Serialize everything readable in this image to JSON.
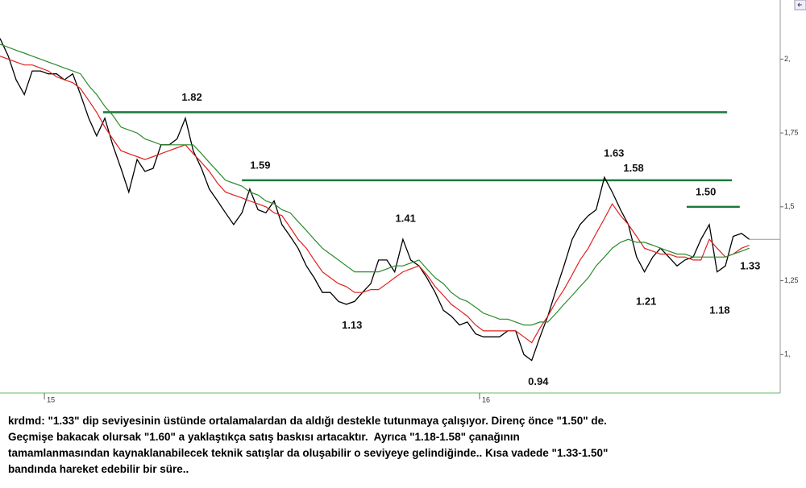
{
  "chart_data": {
    "type": "line",
    "xlim": [
      14.898,
      16.691
    ],
    "ylim": [
      0.87,
      2.2
    ],
    "xticks": [
      15,
      16
    ],
    "yticks": [
      {
        "value": 1,
        "label": "1,"
      },
      {
        "value": 1.25,
        "label": "1,25"
      },
      {
        "value": 1.5,
        "label": "1,5"
      },
      {
        "value": 1.75,
        "label": "1,75"
      },
      {
        "value": 2,
        "label": "2,"
      }
    ],
    "x": [
      14.898,
      14.917,
      14.935,
      14.954,
      14.972,
      14.991,
      15.009,
      15.028,
      15.046,
      15.065,
      15.083,
      15.102,
      15.12,
      15.139,
      15.157,
      15.176,
      15.194,
      15.213,
      15.231,
      15.25,
      15.268,
      15.287,
      15.305,
      15.324,
      15.342,
      15.361,
      15.379,
      15.398,
      15.416,
      15.435,
      15.454,
      15.472,
      15.491,
      15.509,
      15.528,
      15.546,
      15.565,
      15.583,
      15.602,
      15.62,
      15.639,
      15.657,
      15.676,
      15.694,
      15.713,
      15.731,
      15.75,
      15.768,
      15.787,
      15.805,
      15.824,
      15.842,
      15.861,
      15.879,
      15.898,
      15.917,
      15.935,
      15.954,
      15.972,
      15.991,
      16.009,
      16.028,
      16.046,
      16.065,
      16.083,
      16.102,
      16.12,
      16.139,
      16.157,
      16.176,
      16.194,
      16.213,
      16.231,
      16.25,
      16.268,
      16.287,
      16.305,
      16.324,
      16.342,
      16.361,
      16.379,
      16.398,
      16.416,
      16.435,
      16.454,
      16.472,
      16.491,
      16.509,
      16.528,
      16.546,
      16.565,
      16.583,
      16.602,
      16.62
    ],
    "series": [
      {
        "color": "#000000",
        "values": [
          2.07,
          2.01,
          1.93,
          1.88,
          1.96,
          1.96,
          1.95,
          1.95,
          1.93,
          1.95,
          1.88,
          1.8,
          1.74,
          1.8,
          1.71,
          1.63,
          1.55,
          1.66,
          1.62,
          1.63,
          1.71,
          1.71,
          1.73,
          1.8,
          1.69,
          1.63,
          1.56,
          1.52,
          1.48,
          1.44,
          1.48,
          1.56,
          1.49,
          1.48,
          1.52,
          1.44,
          1.4,
          1.36,
          1.3,
          1.26,
          1.21,
          1.21,
          1.18,
          1.17,
          1.18,
          1.21,
          1.24,
          1.32,
          1.32,
          1.28,
          1.39,
          1.32,
          1.3,
          1.26,
          1.21,
          1.15,
          1.13,
          1.1,
          1.11,
          1.07,
          1.06,
          1.06,
          1.06,
          1.08,
          1.08,
          1.0,
          0.98,
          1.06,
          1.13,
          1.22,
          1.3,
          1.39,
          1.44,
          1.47,
          1.49,
          1.6,
          1.55,
          1.49,
          1.44,
          1.33,
          1.28,
          1.33,
          1.36,
          1.33,
          1.3,
          1.32,
          1.33,
          1.39,
          1.44,
          1.28,
          1.3,
          1.4,
          1.41,
          1.39
        ]
      },
      {
        "color": "#e0201e",
        "values": [
          2.01,
          2.0,
          1.99,
          1.98,
          1.98,
          1.97,
          1.96,
          1.94,
          1.93,
          1.92,
          1.9,
          1.86,
          1.82,
          1.77,
          1.73,
          1.69,
          1.68,
          1.67,
          1.66,
          1.67,
          1.68,
          1.69,
          1.7,
          1.71,
          1.68,
          1.65,
          1.62,
          1.58,
          1.55,
          1.54,
          1.53,
          1.52,
          1.51,
          1.5,
          1.48,
          1.47,
          1.43,
          1.39,
          1.36,
          1.32,
          1.28,
          1.26,
          1.24,
          1.23,
          1.21,
          1.21,
          1.22,
          1.22,
          1.24,
          1.26,
          1.28,
          1.29,
          1.3,
          1.27,
          1.23,
          1.2,
          1.17,
          1.15,
          1.13,
          1.1,
          1.08,
          1.08,
          1.08,
          1.08,
          1.08,
          1.06,
          1.04,
          1.09,
          1.13,
          1.18,
          1.22,
          1.27,
          1.32,
          1.36,
          1.41,
          1.46,
          1.51,
          1.47,
          1.44,
          1.4,
          1.36,
          1.35,
          1.34,
          1.34,
          1.33,
          1.33,
          1.32,
          1.32,
          1.39,
          1.36,
          1.33,
          1.34,
          1.36,
          1.37
        ]
      },
      {
        "color": "#2a8a2a",
        "values": [
          2.05,
          2.04,
          2.03,
          2.02,
          2.01,
          2.0,
          1.99,
          1.98,
          1.97,
          1.96,
          1.95,
          1.91,
          1.88,
          1.84,
          1.81,
          1.77,
          1.76,
          1.75,
          1.73,
          1.72,
          1.71,
          1.71,
          1.71,
          1.71,
          1.71,
          1.68,
          1.65,
          1.62,
          1.59,
          1.58,
          1.57,
          1.55,
          1.54,
          1.52,
          1.51,
          1.49,
          1.48,
          1.45,
          1.42,
          1.39,
          1.36,
          1.34,
          1.32,
          1.3,
          1.28,
          1.28,
          1.28,
          1.28,
          1.29,
          1.3,
          1.3,
          1.31,
          1.32,
          1.29,
          1.26,
          1.24,
          1.21,
          1.19,
          1.18,
          1.16,
          1.14,
          1.13,
          1.12,
          1.12,
          1.11,
          1.1,
          1.1,
          1.11,
          1.11,
          1.14,
          1.17,
          1.2,
          1.23,
          1.26,
          1.3,
          1.33,
          1.36,
          1.38,
          1.39,
          1.38,
          1.38,
          1.37,
          1.36,
          1.35,
          1.34,
          1.34,
          1.33,
          1.33,
          1.33,
          1.33,
          1.33,
          1.34,
          1.35,
          1.36
        ]
      }
    ],
    "levels": [
      {
        "value": 1.82,
        "x": [
          15.135,
          16.569
        ]
      },
      {
        "value": 1.59,
        "x": [
          15.454,
          16.58
        ]
      },
      {
        "value": 1.5,
        "x": [
          16.476,
          16.598
        ]
      }
    ],
    "level_color": "#1a7a3a",
    "last_value": 1.39,
    "last_color": "#8c9ab8",
    "annotations": [
      {
        "label": "1.82",
        "value": 1.82,
        "x": 15.339,
        "position": "above"
      },
      {
        "label": "1.59",
        "value": 1.59,
        "x": 15.496,
        "position": "above"
      },
      {
        "label": "1.41",
        "value": 1.41,
        "x": 15.83,
        "position": "above"
      },
      {
        "label": "1.13",
        "value": 1.13,
        "x": 15.707,
        "position": "below"
      },
      {
        "label": "0.94",
        "value": 0.94,
        "x": 16.135,
        "position": "below"
      },
      {
        "label": "1.63",
        "value": 1.63,
        "x": 16.309,
        "position": "above"
      },
      {
        "label": "1.58",
        "value": 1.58,
        "x": 16.354,
        "position": "above"
      },
      {
        "label": "1.50",
        "value": 1.5,
        "x": 16.52,
        "position": "above"
      },
      {
        "label": "1.21",
        "value": 1.21,
        "x": 16.383,
        "position": "below"
      },
      {
        "label": "1.18",
        "value": 1.18,
        "x": 16.552,
        "position": "below"
      },
      {
        "label": "1.33",
        "value": 1.33,
        "x": 16.622,
        "position": "below"
      }
    ]
  },
  "commentary": [
    "krdmd: \"1.33\" dip seviyesinin üstünde ortalamalardan da aldığı destekle tutunmaya çalışıyor. Direnç önce \"1.50\" de.",
    "Geçmişe bakacak olursak \"1.60\" a yaklaştıkça satış baskısı artacaktır.  Ayrıca \"1.18-1.58\" çanağının",
    "tamamlanmasından kaynaklanabilecek teknik satışlar da oluşabilir o seviyeye gelindiğinde.. Kısa vadede \"1.33-1.50\"",
    "bandında hareket edebilir bir süre.."
  ]
}
